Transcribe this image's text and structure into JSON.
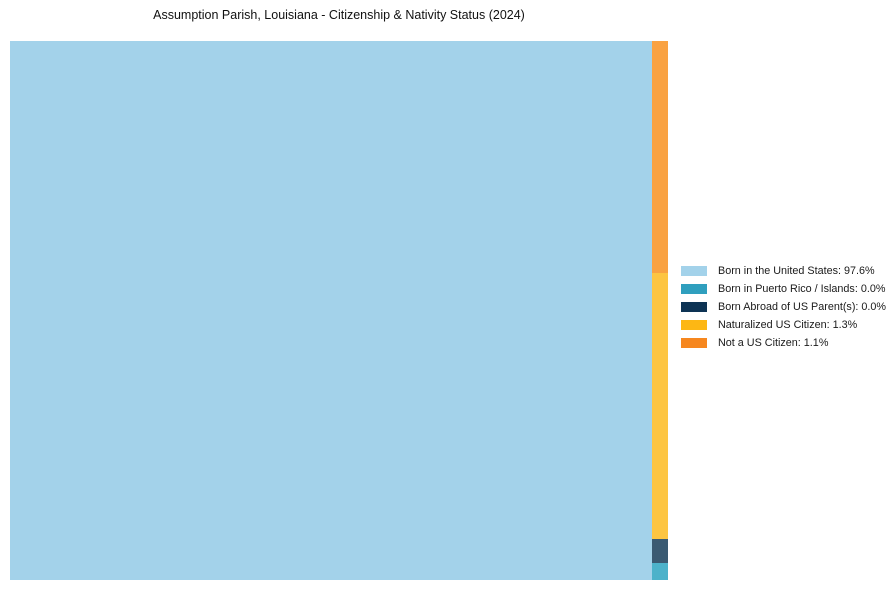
{
  "chart_data": {
    "type": "treemap",
    "title": "Assumption Parish, Louisiana - Citizenship & Nativity Status (2024)",
    "legend_position": "right-center",
    "categories": [
      "Born in the United States",
      "Born in Puerto Rico / Islands",
      "Born Abroad of US Parent(s)",
      "Naturalized US Citizen",
      "Not a US Citizen"
    ],
    "values_pct": [
      97.6,
      0.0,
      0.0,
      1.3,
      1.1
    ],
    "segments": [
      {
        "id": "born-us",
        "label": "Born in the United States",
        "value_pct": 97.6,
        "legend_label": "Born in the United States: 97.6%",
        "color": "#a3d2ea",
        "fill": "#a3d2ea",
        "column_fraction": 0
      },
      {
        "id": "born-puerto-rico",
        "label": "Born in Puerto Rico / Islands",
        "value_pct": 0.0,
        "legend_label": "Born in Puerto Rico / Islands: 0.0%",
        "color": "#2f9fbe",
        "fill": "#4cb2ca",
        "column_fraction": 0.0315
      },
      {
        "id": "born-abroad",
        "label": "Born Abroad of US Parent(s)",
        "value_pct": 0.0,
        "legend_label": "Born Abroad of US Parent(s): 0.0%",
        "color": "#0d3354",
        "fill": "#3a5a72",
        "column_fraction": 0.0445
      },
      {
        "id": "naturalized",
        "label": "Naturalized US Citizen",
        "value_pct": 1.3,
        "legend_label": "Naturalized US Citizen: 1.3%",
        "color": "#fdb714",
        "fill": "#fdc542",
        "column_fraction": 0.4935
      },
      {
        "id": "not-us-citizen",
        "label": "Not a US Citizen",
        "value_pct": 1.1,
        "legend_label": "Not a US Citizen: 1.1%",
        "color": "#f6871f",
        "fill": "#f9a242",
        "column_fraction": 0.4305
      }
    ],
    "layout": {
      "main_width_fraction": 0.9757,
      "side_column_top_to_bottom": [
        "not-us-citizen",
        "naturalized",
        "born-abroad",
        "born-puerto-rico"
      ],
      "grid": false
    }
  }
}
